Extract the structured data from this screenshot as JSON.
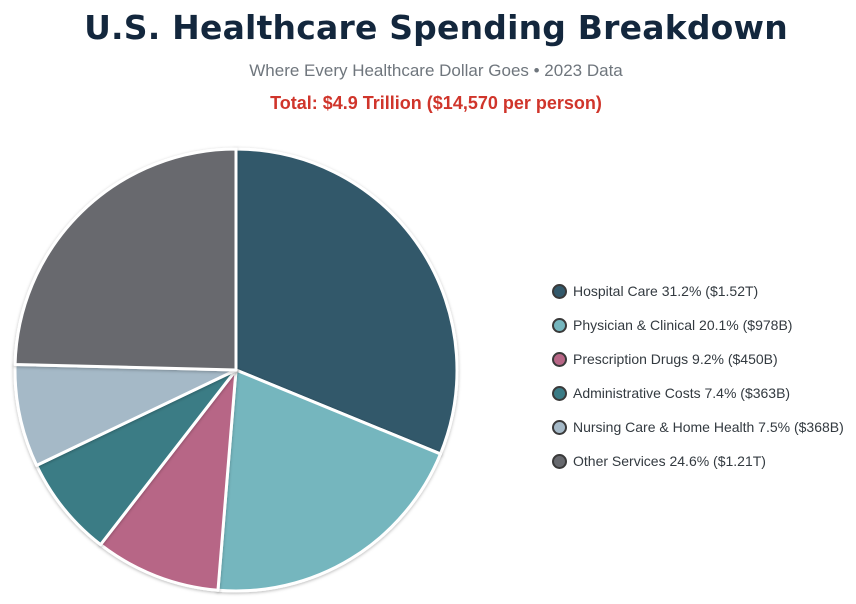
{
  "header": {
    "title": "U.S. Healthcare Spending Breakdown",
    "subtitle": "Where Every Healthcare Dollar Goes • 2023 Data",
    "total": "Total: $4.9 Trillion ($14,570 per person)"
  },
  "colors": {
    "title": "#13273d",
    "subtitle": "#6f767d",
    "total": "#d0352b",
    "slice_border": "#ffffff"
  },
  "chart_data": {
    "type": "pie",
    "title": "U.S. Healthcare Spending Breakdown",
    "subtitle": "Where Every Healthcare Dollar Goes • 2023 Data",
    "legend_position": "right",
    "start_angle": "top, clockwise",
    "slices": [
      {
        "name": "Hospital Care",
        "percent": 31.2,
        "amount": "$1.52T",
        "label": "Hospital Care 31.2% ($1.52T)",
        "color": "#33596b"
      },
      {
        "name": "Physician & Clinical",
        "percent": 20.1,
        "amount": "$978B",
        "label": "Physician & Clinical 20.1% ($978B)",
        "color": "#75b6be"
      },
      {
        "name": "Prescription Drugs",
        "percent": 9.2,
        "amount": "$450B",
        "label": "Prescription Drugs 9.2% ($450B)",
        "color": "#b76686"
      },
      {
        "name": "Administrative Costs",
        "percent": 7.4,
        "amount": "$363B",
        "label": "Administrative Costs 7.4% ($363B)",
        "color": "#3a7b85"
      },
      {
        "name": "Nursing Care & Home Health",
        "percent": 7.5,
        "amount": "$368B",
        "label": "Nursing Care & Home Health 7.5% ($368B)",
        "color": "#a5b9c7"
      },
      {
        "name": "Other Services",
        "percent": 24.6,
        "amount": "$1.21T",
        "label": "Other Services 24.6% ($1.21T)",
        "color": "#67696e"
      }
    ]
  }
}
